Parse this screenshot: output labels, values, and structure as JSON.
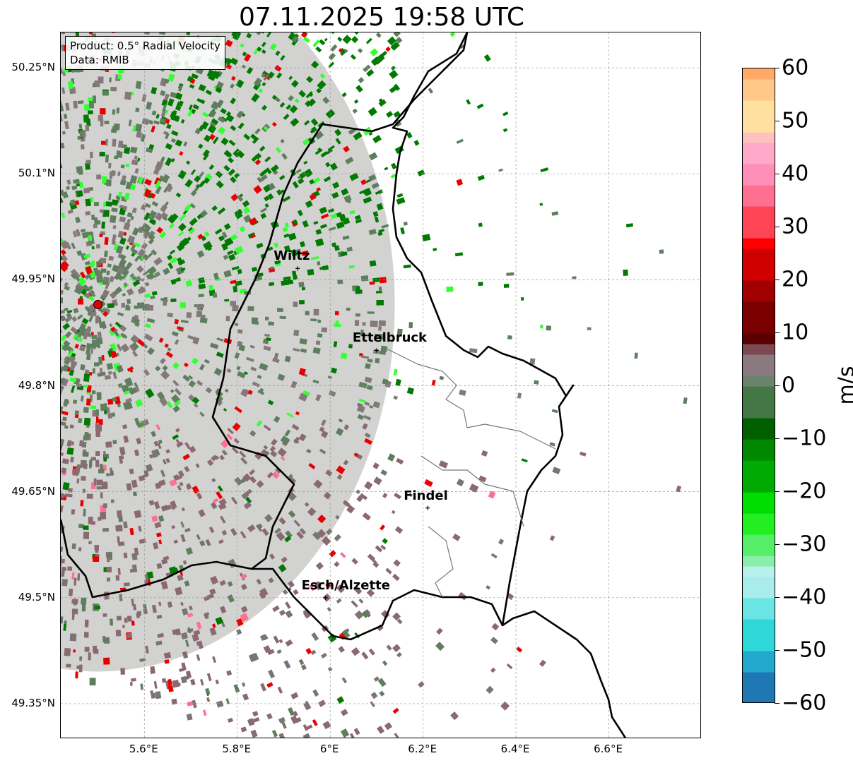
{
  "title": "07.11.2025 19:58 UTC",
  "info_box": {
    "product": "Product: 0.5° Radial Velocity",
    "data": "Data: RMIB"
  },
  "map": {
    "lon_range": [
      5.42,
      6.8
    ],
    "lat_range": [
      49.3,
      50.3
    ],
    "lat_ticks": [
      "50.25°N",
      "50.1°N",
      "49.95°N",
      "49.8°N",
      "49.65°N",
      "49.5°N",
      "49.35°N"
    ],
    "lon_ticks": [
      "5.6°E",
      "5.8°E",
      "6°E",
      "6.2°E",
      "6.4°E",
      "6.6°E"
    ],
    "grid": true,
    "radar_site": {
      "lon": 5.5,
      "lat": 49.915,
      "color": "#e00000"
    },
    "cities": [
      {
        "name": "Wiltz",
        "lon": 5.93,
        "lat": 49.966
      },
      {
        "name": "Ettelbruck",
        "lon": 6.1,
        "lat": 49.85
      },
      {
        "name": "Findel",
        "lon": 6.21,
        "lat": 49.627
      },
      {
        "name": "Esch/Alzette",
        "lon": 5.99,
        "lat": 49.5
      }
    ]
  },
  "colorbar": {
    "unit": "m/s",
    "min": -60,
    "max": 60,
    "ticks": [
      "60",
      "50",
      "40",
      "30",
      "20",
      "10",
      "0",
      "−10",
      "−20",
      "−30",
      "−40",
      "−50",
      "−60"
    ],
    "colors": {
      "orange": "#ff9955",
      "pink": "#ff6f8f",
      "red": "#e80000",
      "dark_red": "#6b0000",
      "brown_gray": "#8a6a70",
      "gray_green": "#5e7e5e",
      "green": "#007a00",
      "bright_green": "#33ff33",
      "cyan": "#33dddd",
      "blue": "#2288cc"
    }
  }
}
